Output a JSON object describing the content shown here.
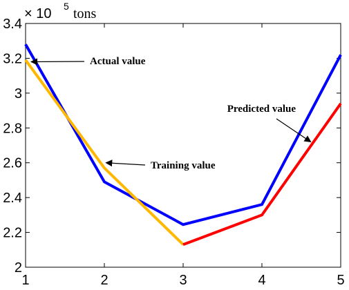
{
  "chart_data": {
    "type": "line",
    "title": "",
    "xlabel": "",
    "ylabel": "",
    "y_multiplier": {
      "base": "× 10",
      "exponent": "5",
      "unit": "tons"
    },
    "xlim": [
      1,
      5
    ],
    "ylim": [
      2,
      3.4
    ],
    "xticks": [
      "1",
      "2",
      "3",
      "4",
      "5"
    ],
    "yticks": [
      "2",
      "2.2",
      "2.4",
      "2.6",
      "2.8",
      "3",
      "3.2",
      "3.4"
    ],
    "grid": false,
    "series": [
      {
        "key": "actual",
        "color": "#0000ff",
        "x": [
          1,
          2,
          3,
          4,
          5
        ],
        "y": [
          3.28,
          2.49,
          2.245,
          2.36,
          3.22
        ]
      },
      {
        "key": "training",
        "color": "#ffb800",
        "x": [
          1,
          2,
          3
        ],
        "y": [
          3.19,
          2.57,
          2.13
        ]
      },
      {
        "key": "predicted",
        "color": "#ff0000",
        "x": [
          3,
          4,
          5
        ],
        "y": [
          2.13,
          2.3,
          2.94
        ]
      }
    ],
    "annotations": [
      {
        "key": "actual",
        "text": "Actual value",
        "arrow_to": [
          1.07,
          3.18
        ]
      },
      {
        "key": "training",
        "text": "Training value",
        "arrow_to": [
          2.02,
          2.6
        ]
      },
      {
        "key": "predicted",
        "text": "Predicted value",
        "arrow_to": [
          4.62,
          2.72
        ]
      }
    ]
  }
}
